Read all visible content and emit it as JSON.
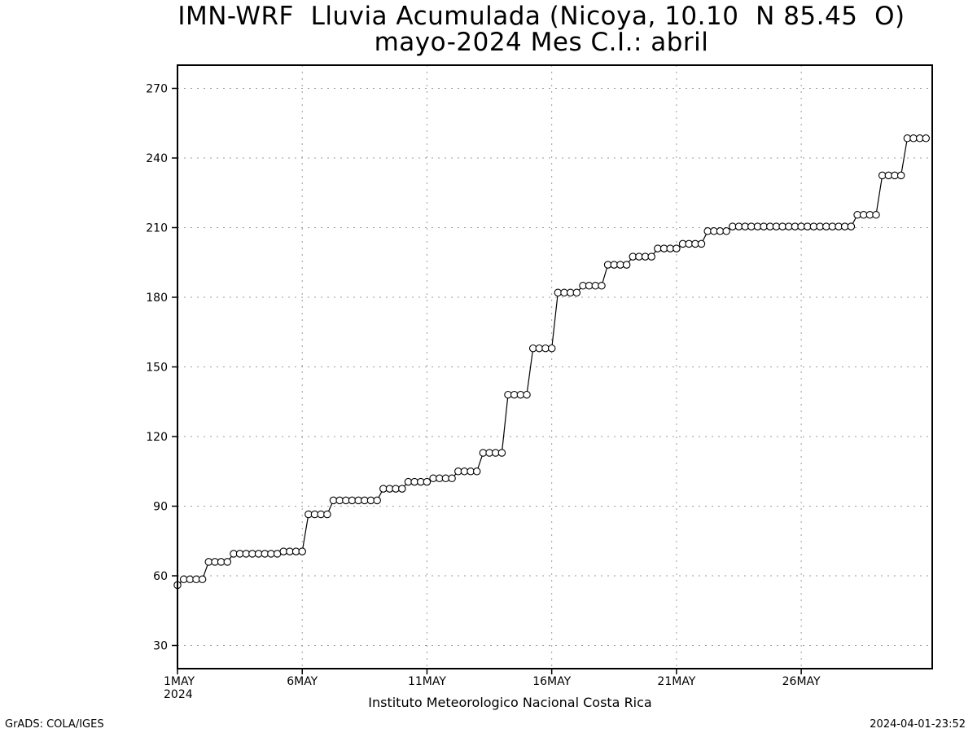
{
  "chart_data": {
    "type": "line",
    "title": "IMN-WRF  Lluvia Acumulada (Nicoya, 10.10  N 85.45  O)",
    "subtitle": "mayo-2024 Mes C.I.: abril",
    "xlabel": "",
    "ylabel": "",
    "ylim": [
      20,
      280
    ],
    "yticks": [
      30,
      60,
      90,
      120,
      150,
      180,
      210,
      240,
      270
    ],
    "xlim_days": [
      1,
      31.25
    ],
    "xticks": [
      {
        "day": 1,
        "label": "1MAY",
        "sublabel": "2024"
      },
      {
        "day": 6,
        "label": "6MAY",
        "sublabel": ""
      },
      {
        "day": 11,
        "label": "11MAY",
        "sublabel": ""
      },
      {
        "day": 16,
        "label": "16MAY",
        "sublabel": ""
      },
      {
        "day": 21,
        "label": "21MAY",
        "sublabel": ""
      },
      {
        "day": 26,
        "label": "26MAY",
        "sublabel": ""
      }
    ],
    "grid": true,
    "marker": "open-circle",
    "step_hours": 6,
    "start": "2024-05-01 00Z",
    "values": [
      56,
      58.5,
      58.5,
      58.5,
      58.5,
      66,
      66,
      66,
      66,
      69.5,
      69.5,
      69.5,
      69.5,
      69.5,
      69.5,
      69.5,
      69.5,
      70.5,
      70.5,
      70.5,
      70.5,
      86.5,
      86.5,
      86.5,
      86.5,
      92.5,
      92.5,
      92.5,
      92.5,
      92.5,
      92.5,
      92.5,
      92.5,
      97.5,
      97.5,
      97.5,
      97.5,
      100.5,
      100.5,
      100.5,
      100.5,
      102,
      102,
      102,
      102,
      105,
      105,
      105,
      105,
      113,
      113,
      113,
      113,
      138,
      138,
      138,
      138,
      158,
      158,
      158,
      158,
      182,
      182,
      182,
      182,
      185,
      185,
      185,
      185,
      194,
      194,
      194,
      194,
      197.5,
      197.5,
      197.5,
      197.5,
      201,
      201,
      201,
      201,
      203,
      203,
      203,
      203,
      208.5,
      208.5,
      208.5,
      208.5,
      210.5,
      210.5,
      210.5,
      210.5,
      210.5,
      210.5,
      210.5,
      210.5,
      210.5,
      210.5,
      210.5,
      210.5,
      210.5,
      210.5,
      210.5,
      210.5,
      210.5,
      210.5,
      210.5,
      210.5,
      215.5,
      215.5,
      215.5,
      215.5,
      232.5,
      232.5,
      232.5,
      232.5,
      248.5,
      248.5,
      248.5,
      248.5
    ]
  },
  "footer": {
    "credit": "Instituto Meteorologico Nacional Costa Rica",
    "left": "GrADS: COLA/IGES",
    "right": "2024-04-01-23:52"
  }
}
